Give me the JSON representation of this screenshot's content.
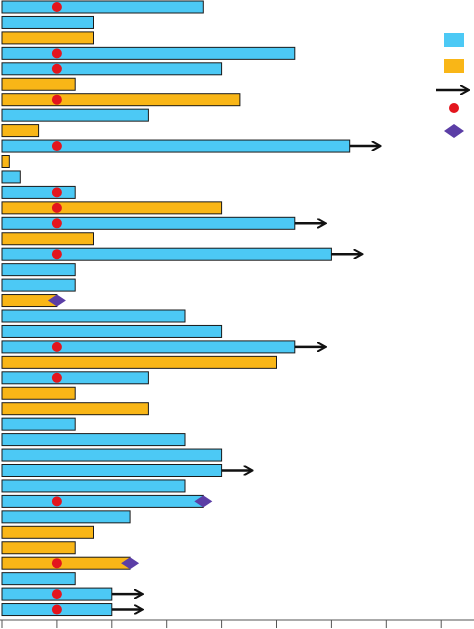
{
  "chart_data": {
    "type": "bar",
    "orientation": "horizontal",
    "xlim": [
      0,
      13
    ],
    "grid": false,
    "legend_placement": "right",
    "colors": {
      "blue": "#4cc9f5",
      "orange": "#f9b617",
      "outline": "#1a1a1a",
      "arrow": "#111111",
      "dot": "#e3151d",
      "diamond": "#5b3ea6",
      "axis": "#555555"
    },
    "legend": [
      {
        "symbol": "blue-bar"
      },
      {
        "symbol": "orange-bar"
      },
      {
        "symbol": "arrow"
      },
      {
        "symbol": "red-dot"
      },
      {
        "symbol": "purple-diamond"
      }
    ],
    "bars": [
      {
        "value": 5.5,
        "color": "blue",
        "dot": 1.5
      },
      {
        "value": 2.5,
        "color": "blue"
      },
      {
        "value": 2.5,
        "color": "orange"
      },
      {
        "value": 8.0,
        "color": "blue",
        "dot": 1.5
      },
      {
        "value": 6.0,
        "color": "blue",
        "dot": 1.5
      },
      {
        "value": 2.0,
        "color": "orange"
      },
      {
        "value": 6.5,
        "color": "orange",
        "dot": 1.5
      },
      {
        "value": 4.0,
        "color": "blue"
      },
      {
        "value": 1.0,
        "color": "orange"
      },
      {
        "value": 9.5,
        "color": "blue",
        "dot": 1.5,
        "arrow": true
      },
      {
        "value": 0.2,
        "color": "orange"
      },
      {
        "value": 0.5,
        "color": "blue"
      },
      {
        "value": 2.0,
        "color": "blue",
        "dot": 1.5
      },
      {
        "value": 6.0,
        "color": "orange",
        "dot": 1.5
      },
      {
        "value": 8.0,
        "color": "blue",
        "dot": 1.5,
        "arrow": true
      },
      {
        "value": 2.5,
        "color": "orange"
      },
      {
        "value": 9.0,
        "color": "blue",
        "dot": 1.5,
        "arrow": true
      },
      {
        "value": 2.0,
        "color": "blue"
      },
      {
        "value": 2.0,
        "color": "blue"
      },
      {
        "value": 1.5,
        "color": "orange",
        "diamond": 1.5
      },
      {
        "value": 5.0,
        "color": "blue"
      },
      {
        "value": 6.0,
        "color": "blue"
      },
      {
        "value": 8.0,
        "color": "blue",
        "dot": 1.5,
        "arrow": true
      },
      {
        "value": 7.5,
        "color": "orange"
      },
      {
        "value": 4.0,
        "color": "blue",
        "dot": 1.5
      },
      {
        "value": 2.0,
        "color": "orange"
      },
      {
        "value": 4.0,
        "color": "orange"
      },
      {
        "value": 2.0,
        "color": "blue"
      },
      {
        "value": 5.0,
        "color": "blue"
      },
      {
        "value": 6.0,
        "color": "blue"
      },
      {
        "value": 6.0,
        "color": "blue",
        "arrow": true
      },
      {
        "value": 5.0,
        "color": "blue"
      },
      {
        "value": 5.5,
        "color": "blue",
        "dot": 1.5,
        "diamond": 5.5
      },
      {
        "value": 3.5,
        "color": "blue"
      },
      {
        "value": 2.5,
        "color": "orange"
      },
      {
        "value": 2.0,
        "color": "orange"
      },
      {
        "value": 3.5,
        "color": "orange",
        "dot": 1.5,
        "diamond": 3.5
      },
      {
        "value": 2.0,
        "color": "blue"
      },
      {
        "value": 3.0,
        "color": "blue",
        "dot": 1.5,
        "arrow": true
      },
      {
        "value": 3.0,
        "color": "blue",
        "dot": 1.5,
        "arrow": true
      }
    ]
  }
}
